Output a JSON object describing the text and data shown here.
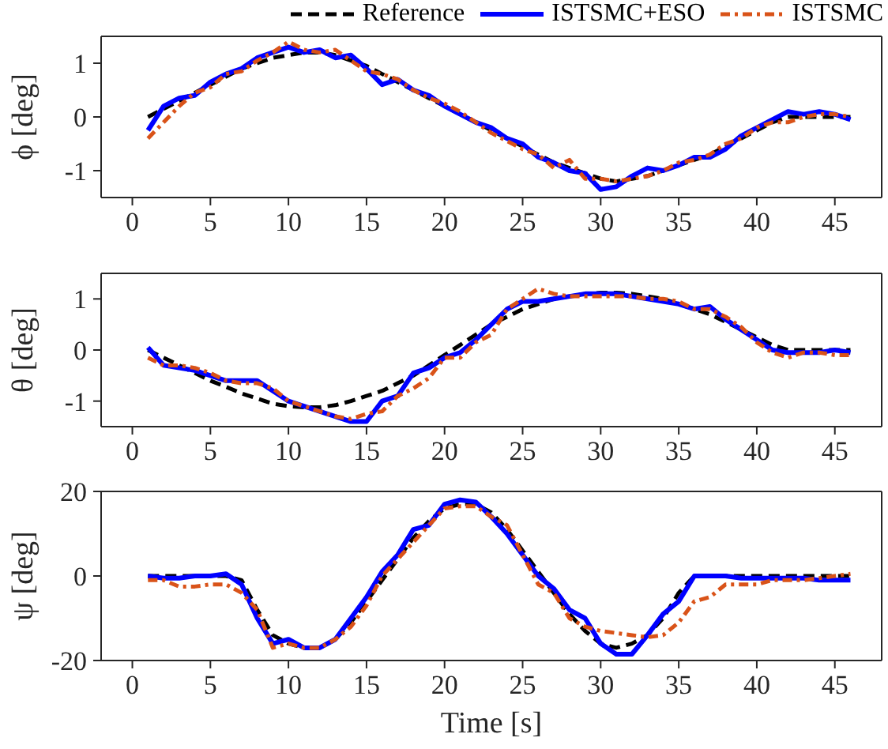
{
  "chart_data": [
    {
      "type": "line",
      "ylabel": "ϕ [deg]",
      "legend": "top right",
      "marker": "none",
      "xlim": [
        -2,
        48
      ],
      "xticks": [
        0,
        5,
        10,
        15,
        20,
        25,
        30,
        35,
        40,
        45
      ],
      "ylim": [
        -1.5,
        1.5
      ],
      "yticks": [
        -1,
        0,
        1
      ],
      "x": [
        1,
        2,
        3,
        4,
        5,
        6,
        7,
        8,
        9,
        10,
        11,
        12,
        13,
        14,
        15,
        16,
        17,
        18,
        19,
        20,
        21,
        22,
        23,
        24,
        25,
        26,
        27,
        28,
        29,
        30,
        31,
        32,
        33,
        34,
        35,
        36,
        37,
        38,
        39,
        40,
        41,
        42,
        43,
        44,
        45,
        46
      ],
      "series": [
        {
          "name": "Reference",
          "color": "#000000",
          "line_style": "dashed",
          "values": [
            0,
            0.15,
            0.3,
            0.45,
            0.6,
            0.75,
            0.9,
            1.0,
            1.1,
            1.15,
            1.2,
            1.2,
            1.15,
            1.05,
            0.95,
            0.8,
            0.65,
            0.5,
            0.35,
            0.2,
            0.05,
            -0.1,
            -0.25,
            -0.4,
            -0.55,
            -0.7,
            -0.85,
            -0.95,
            -1.05,
            -1.15,
            -1.2,
            -1.15,
            -1.1,
            -1.0,
            -0.9,
            -0.8,
            -0.7,
            -0.55,
            -0.4,
            -0.25,
            -0.1,
            0,
            0,
            0,
            0,
            0
          ]
        },
        {
          "name": "ISTSMC+ESO",
          "color": "#0000ff",
          "line_style": "solid",
          "values": [
            -0.25,
            0.2,
            0.35,
            0.4,
            0.65,
            0.8,
            0.9,
            1.1,
            1.2,
            1.3,
            1.2,
            1.25,
            1.1,
            1.15,
            0.9,
            0.6,
            0.7,
            0.5,
            0.4,
            0.2,
            0.05,
            -0.1,
            -0.2,
            -0.4,
            -0.5,
            -0.75,
            -0.85,
            -1.0,
            -1.05,
            -1.35,
            -1.3,
            -1.1,
            -0.95,
            -1.0,
            -0.9,
            -0.75,
            -0.75,
            -0.6,
            -0.35,
            -0.2,
            -0.05,
            0.1,
            0.05,
            0.1,
            0.05,
            -0.05
          ]
        },
        {
          "name": "ISTSMC",
          "color": "#d95319",
          "line_style": "dashdot",
          "values": [
            -0.4,
            -0.1,
            0.2,
            0.45,
            0.55,
            0.8,
            0.85,
            1.05,
            1.2,
            1.4,
            1.25,
            1.2,
            1.25,
            1.05,
            0.85,
            0.8,
            0.7,
            0.5,
            0.35,
            0.25,
            0.1,
            -0.1,
            -0.3,
            -0.45,
            -0.6,
            -0.7,
            -0.95,
            -0.8,
            -1.15,
            -1.15,
            -1.2,
            -1.15,
            -1.1,
            -1.0,
            -0.85,
            -0.8,
            -0.7,
            -0.5,
            -0.4,
            -0.2,
            -0.1,
            -0.1,
            0.0,
            0.05,
            0.05,
            0.0
          ]
        }
      ]
    },
    {
      "type": "line",
      "ylabel": "θ [deg]",
      "marker": "none",
      "xlim": [
        -2,
        48
      ],
      "xticks": [
        0,
        5,
        10,
        15,
        20,
        25,
        30,
        35,
        40,
        45
      ],
      "ylim": [
        -1.5,
        1.5
      ],
      "yticks": [
        -1,
        0,
        1
      ],
      "x": [
        1,
        2,
        3,
        4,
        5,
        6,
        7,
        8,
        9,
        10,
        11,
        12,
        13,
        14,
        15,
        16,
        17,
        18,
        19,
        20,
        21,
        22,
        23,
        24,
        25,
        26,
        27,
        28,
        29,
        30,
        31,
        32,
        33,
        34,
        35,
        36,
        37,
        38,
        39,
        40,
        41,
        42,
        43,
        44,
        45,
        46
      ],
      "series": [
        {
          "color": "#000000",
          "line_style": "dashed",
          "values": [
            0,
            -0.15,
            -0.3,
            -0.45,
            -0.6,
            -0.72,
            -0.85,
            -0.95,
            -1.05,
            -1.1,
            -1.12,
            -1.12,
            -1.08,
            -1.0,
            -0.9,
            -0.8,
            -0.65,
            -0.5,
            -0.3,
            -0.1,
            0.1,
            0.3,
            0.5,
            0.65,
            0.8,
            0.9,
            1.0,
            1.05,
            1.1,
            1.12,
            1.12,
            1.1,
            1.05,
            1.0,
            0.9,
            0.8,
            0.7,
            0.55,
            0.4,
            0.25,
            0.1,
            0,
            0,
            0,
            0,
            0
          ]
        },
        {
          "color": "#0000ff",
          "line_style": "solid",
          "values": [
            0.05,
            -0.3,
            -0.35,
            -0.4,
            -0.5,
            -0.6,
            -0.6,
            -0.6,
            -0.8,
            -1.0,
            -1.1,
            -1.2,
            -1.3,
            -1.4,
            -1.4,
            -1.0,
            -0.9,
            -0.45,
            -0.35,
            -0.15,
            -0.05,
            0.2,
            0.5,
            0.8,
            0.95,
            0.95,
            1.0,
            1.05,
            1.1,
            1.1,
            1.1,
            1.05,
            1.0,
            0.95,
            0.9,
            0.8,
            0.85,
            0.6,
            0.4,
            0.2,
            0,
            -0.05,
            -0.05,
            -0.05,
            0,
            -0.05
          ]
        },
        {
          "color": "#d95319",
          "line_style": "dashdot",
          "values": [
            -0.15,
            -0.3,
            -0.3,
            -0.35,
            -0.45,
            -0.6,
            -0.65,
            -0.65,
            -0.75,
            -1.0,
            -1.1,
            -1.2,
            -1.3,
            -1.35,
            -1.25,
            -1.2,
            -0.9,
            -0.75,
            -0.55,
            -0.15,
            -0.15,
            0.15,
            0.3,
            0.8,
            1.0,
            1.2,
            1.1,
            1.05,
            1.05,
            1.05,
            1.05,
            1.05,
            1.0,
            1.0,
            0.95,
            0.8,
            0.8,
            0.65,
            0.45,
            0.15,
            -0.05,
            -0.15,
            -0.05,
            -0.05,
            -0.1,
            -0.1
          ]
        }
      ]
    },
    {
      "type": "line",
      "ylabel": "ψ [deg]",
      "xlabel": "Time [s]",
      "marker": "none",
      "xlim": [
        -2,
        48
      ],
      "xticks": [
        0,
        5,
        10,
        15,
        20,
        25,
        30,
        35,
        40,
        45
      ],
      "ylim": [
        -20,
        20
      ],
      "yticks": [
        -20,
        0,
        20
      ],
      "x": [
        1,
        2,
        3,
        4,
        5,
        6,
        7,
        8,
        9,
        10,
        11,
        12,
        13,
        14,
        15,
        16,
        17,
        18,
        19,
        20,
        21,
        22,
        23,
        24,
        25,
        26,
        27,
        28,
        29,
        30,
        31,
        32,
        33,
        34,
        35,
        36,
        37,
        38,
        39,
        40,
        41,
        42,
        43,
        44,
        45,
        46
      ],
      "series": [
        {
          "color": "#000000",
          "line_style": "dashed",
          "values": [
            0,
            0,
            0,
            0,
            0,
            0,
            -1,
            -8,
            -14,
            -16,
            -17,
            -17,
            -15,
            -11,
            -6,
            -1,
            4,
            9,
            13,
            16,
            17,
            17,
            15,
            11,
            6,
            1,
            -4,
            -9,
            -13,
            -16,
            -17,
            -16,
            -14,
            -10,
            -4,
            0,
            0,
            0,
            0,
            0,
            0,
            0,
            0,
            0,
            0,
            0
          ]
        },
        {
          "color": "#0000ff",
          "line_style": "solid",
          "values": [
            0,
            -0.5,
            -0.5,
            0,
            0,
            0.5,
            -2,
            -10,
            -16,
            -15,
            -17,
            -17,
            -15,
            -10,
            -5,
            1,
            5,
            11,
            12,
            17,
            18,
            17.5,
            14,
            10,
            5,
            0,
            -3,
            -8,
            -10,
            -16,
            -18.5,
            -18.5,
            -14,
            -9,
            -6,
            0,
            0,
            0,
            -0.5,
            -0.5,
            -0.5,
            -0.5,
            -0.5,
            -1,
            -1,
            -1
          ]
        },
        {
          "color": "#d95319",
          "line_style": "dashdot",
          "values": [
            -1,
            -1,
            -2.5,
            -2.5,
            -2,
            -2,
            -4,
            -8,
            -17,
            -16,
            -17,
            -17,
            -15,
            -12,
            -7,
            0,
            4,
            8,
            12,
            16,
            16.5,
            16.5,
            14,
            12,
            5,
            -2,
            -4,
            -10,
            -12,
            -13,
            -13.5,
            -14,
            -14.5,
            -14,
            -11,
            -6,
            -5,
            -2,
            -2,
            -2,
            -1,
            -1,
            -1,
            -0.5,
            0,
            0.5
          ]
        }
      ]
    }
  ]
}
